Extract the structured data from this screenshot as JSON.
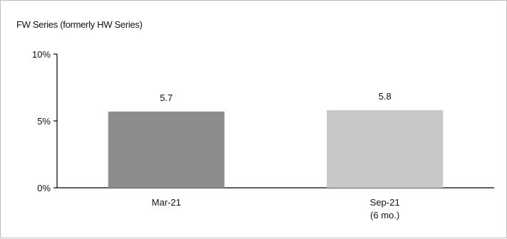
{
  "chart_data": {
    "type": "bar",
    "title": "FW Series (formerly HW Series)",
    "categories": [
      [
        "Mar-21"
      ],
      [
        "Sep-21",
        "(6 mo.)"
      ]
    ],
    "values": [
      5.7,
      5.8
    ],
    "data_labels": [
      "5.7",
      "5.8"
    ],
    "bar_colors": [
      "#8c8c8c",
      "#c8c8c8"
    ],
    "y_ticks": [
      {
        "value": 0,
        "label": "0%"
      },
      {
        "value": 5,
        "label": "5%"
      },
      {
        "value": 10,
        "label": "10%"
      }
    ],
    "ylim": [
      0,
      10
    ],
    "xlabel": "",
    "ylabel": "",
    "grid": false,
    "legend": "none"
  }
}
